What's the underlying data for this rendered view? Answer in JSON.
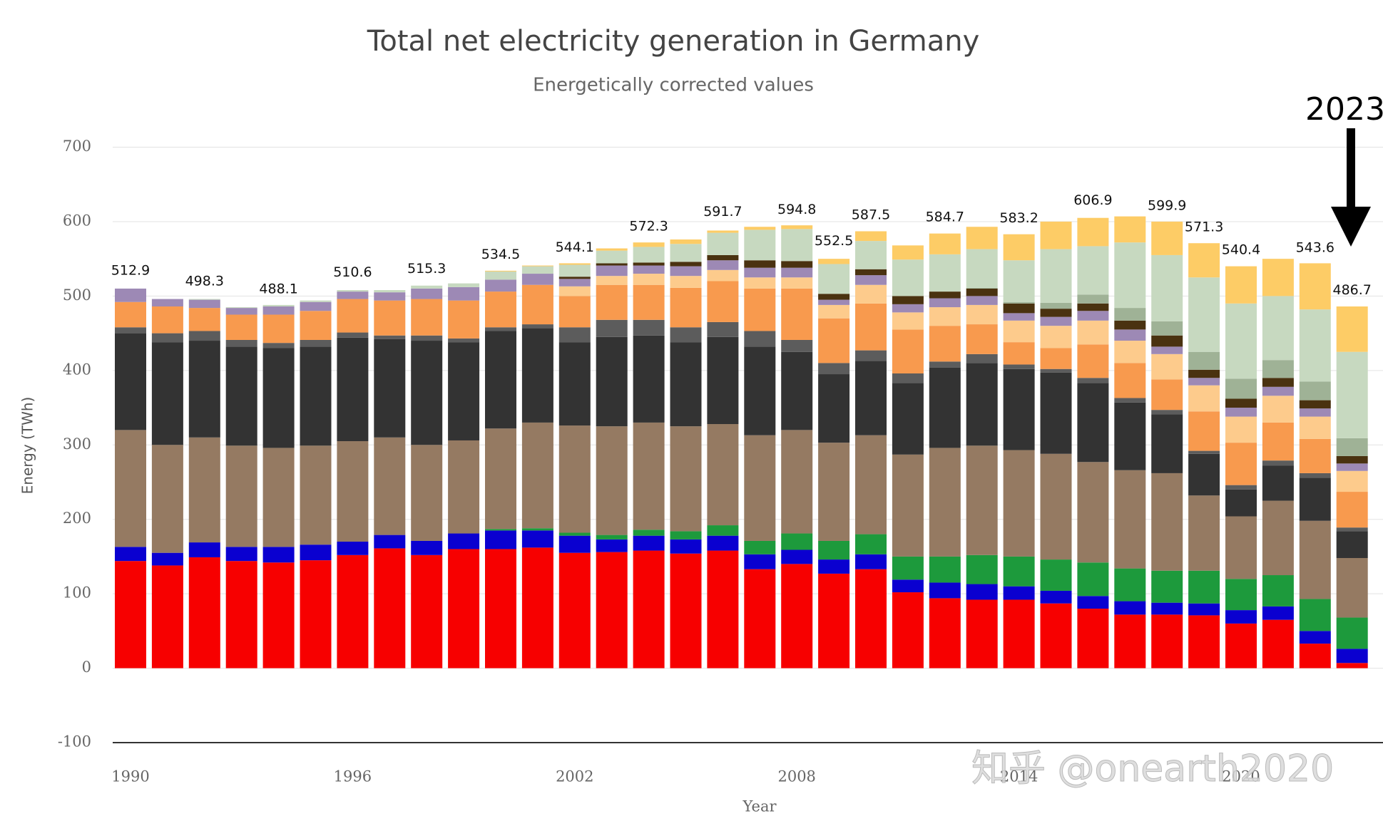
{
  "chart_data": {
    "type": "stacked_bar",
    "title": "Total net electricity generation in Germany",
    "subtitle": "Energetically corrected values",
    "y_axis_label": "Energy (TWh)",
    "x_axis_label": "Year",
    "annotation": "2023",
    "watermark": "知乎 @onearth2020",
    "categories": [
      "1990",
      null,
      null,
      null,
      null,
      null,
      "1996",
      null,
      null,
      null,
      null,
      null,
      "2002",
      null,
      null,
      null,
      null,
      null,
      "2008",
      null,
      null,
      null,
      null,
      null,
      "2014",
      null,
      null,
      null,
      null,
      null,
      "2020",
      null,
      null,
      null
    ],
    "ylim": [
      -100,
      700
    ],
    "yticks": [
      -100,
      0,
      100,
      200,
      300,
      400,
      500,
      600,
      700
    ],
    "grid": true,
    "series": [
      {
        "color": "#f70000",
        "values": [
          144,
          138,
          149,
          144,
          142,
          145,
          152,
          161,
          152,
          160,
          160,
          162,
          155,
          156,
          158,
          154,
          158,
          133,
          140,
          127,
          133,
          102,
          94,
          92,
          92,
          87,
          80,
          72,
          72,
          71,
          60,
          65,
          33,
          7
        ]
      },
      {
        "color": "#0a00d0",
        "values": [
          19,
          17,
          20,
          19,
          21,
          21,
          18,
          18,
          19,
          21,
          25,
          23,
          23,
          17,
          20,
          19,
          20,
          20,
          19,
          19,
          20,
          17,
          21,
          21,
          18,
          17,
          17,
          18,
          16,
          16,
          18,
          18,
          17,
          19
        ]
      },
      {
        "color": "#1d9a3c",
        "values": [
          0,
          0,
          0,
          0,
          0,
          0,
          0,
          0,
          0,
          0,
          2,
          3,
          4,
          6,
          8,
          11,
          14,
          18,
          22,
          25,
          27,
          31,
          35,
          39,
          40,
          42,
          45,
          44,
          43,
          44,
          42,
          42,
          43,
          42
        ]
      },
      {
        "color": "#957a62",
        "values": [
          157,
          145,
          141,
          136,
          133,
          133,
          135,
          131,
          129,
          125,
          135,
          142,
          144,
          146,
          144,
          141,
          136,
          142,
          139,
          132,
          133,
          137,
          146,
          147,
          143,
          142,
          135,
          132,
          131,
          101,
          84,
          100,
          105,
          80
        ]
      },
      {
        "color": "#333333",
        "values": [
          130,
          138,
          130,
          133,
          134,
          133,
          139,
          132,
          140,
          132,
          131,
          127,
          112,
          120,
          117,
          113,
          117,
          119,
          105,
          92,
          100,
          96,
          108,
          111,
          109,
          109,
          106,
          91,
          79,
          56,
          36,
          47,
          58,
          36
        ]
      },
      {
        "color": "#5c5c5c",
        "values": [
          8,
          12,
          13,
          9,
          7,
          9,
          7,
          5,
          7,
          5,
          5,
          5,
          20,
          23,
          21,
          20,
          20,
          21,
          16,
          15,
          14,
          13,
          8,
          12,
          6,
          5,
          7,
          6,
          6,
          4,
          6,
          7,
          6,
          5
        ]
      },
      {
        "color": "#f89a4e",
        "values": [
          34,
          36,
          31,
          34,
          38,
          39,
          45,
          47,
          49,
          51,
          48,
          53,
          42,
          47,
          47,
          53,
          55,
          57,
          69,
          60,
          63,
          59,
          48,
          40,
          30,
          28,
          45,
          47,
          41,
          53,
          57,
          51,
          46,
          48
        ]
      },
      {
        "color": "#fdcb8c",
        "values": [
          0,
          0,
          0,
          0,
          0,
          0,
          0,
          0,
          0,
          0,
          0,
          0,
          13,
          12,
          15,
          16,
          15,
          15,
          15,
          18,
          25,
          23,
          25,
          26,
          29,
          30,
          32,
          30,
          34,
          35,
          35,
          36,
          30,
          28
        ]
      },
      {
        "color": "#9d89b5",
        "values": [
          18,
          10,
          11,
          9,
          11,
          12,
          10,
          11,
          14,
          18,
          16,
          15,
          10,
          14,
          11,
          13,
          13,
          13,
          13,
          7,
          13,
          11,
          12,
          12,
          10,
          12,
          13,
          15,
          10,
          10,
          12,
          12,
          11,
          10
        ]
      },
      {
        "color": "#4a3210",
        "values": [
          0,
          0,
          0,
          0,
          0,
          0,
          0,
          0,
          0,
          0,
          0,
          0,
          3,
          3,
          4,
          6,
          7,
          10,
          9,
          8,
          8,
          11,
          9,
          10,
          13,
          11,
          10,
          12,
          15,
          11,
          12,
          12,
          11,
          10
        ]
      },
      {
        "color": "#9fb296",
        "values": [
          0,
          0,
          0,
          0,
          0,
          0,
          0,
          0,
          0,
          0,
          0,
          0,
          0,
          0,
          0,
          0,
          0,
          0,
          0,
          0,
          0,
          0,
          0,
          1,
          2,
          8,
          12,
          17,
          19,
          24,
          27,
          24,
          25,
          24
        ]
      },
      {
        "color": "#c7d9c0",
        "values": [
          0,
          0,
          1,
          1,
          2,
          2,
          2,
          3,
          4,
          5,
          11,
          10,
          16,
          17,
          21,
          24,
          30,
          41,
          43,
          40,
          38,
          49,
          50,
          52,
          56,
          72,
          65,
          88,
          89,
          100,
          101,
          86,
          97,
          116
        ]
      },
      {
        "color": "#fdcc66",
        "values": [
          0,
          0,
          0,
          0,
          0,
          0,
          0,
          0,
          0,
          0,
          1,
          1,
          2,
          3,
          6,
          6,
          3,
          4,
          5,
          7,
          13,
          19,
          28,
          30,
          35,
          37,
          38,
          35,
          45,
          46,
          50,
          50,
          62,
          61
        ]
      }
    ],
    "totals": [
      512.9,
      null,
      498.3,
      null,
      488.1,
      null,
      510.6,
      null,
      515.3,
      null,
      534.5,
      null,
      544.1,
      null,
      572.3,
      null,
      591.7,
      null,
      594.8,
      552.5,
      587.5,
      null,
      584.7,
      null,
      583.2,
      null,
      606.9,
      null,
      599.9,
      571.3,
      540.4,
      null,
      543.6,
      486.7
    ]
  }
}
